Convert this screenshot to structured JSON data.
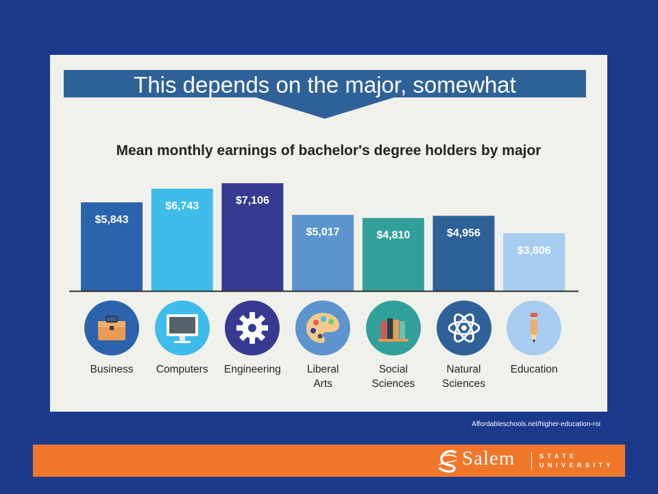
{
  "banner": {
    "title": "This depends on the major, somewhat"
  },
  "chart_data": {
    "type": "bar",
    "title": "Mean monthly earnings of bachelor's degree holders by major",
    "categories": [
      "Business",
      "Computers",
      "Engineering",
      "Liberal Arts",
      "Social Sciences",
      "Natural Sciences",
      "Education"
    ],
    "category_lines": [
      [
        "Business"
      ],
      [
        "Computers"
      ],
      [
        "Engineering"
      ],
      [
        "Liberal",
        "Arts"
      ],
      [
        "Social",
        "Sciences"
      ],
      [
        "Natural",
        "Sciences"
      ],
      [
        "Education"
      ]
    ],
    "values": [
      5843,
      6743,
      7106,
      5017,
      4810,
      4956,
      3806
    ],
    "value_labels": [
      "$5,843",
      "$6,743",
      "$7,106",
      "$5,017",
      "$4,810",
      "$4,956",
      "$3,806"
    ],
    "bar_colors": [
      "#2b63ad",
      "#3fbdea",
      "#363b91",
      "#5d94cd",
      "#32a09a",
      "#2f6199",
      "#a6cdef"
    ],
    "icon_names": [
      "briefcase-icon",
      "computer-monitor-icon",
      "gear-icon",
      "paint-palette-icon",
      "books-icon",
      "atom-icon",
      "pencil-icon"
    ],
    "icon_colors": [
      "#2b63ad",
      "#3fbdea",
      "#363b91",
      "#5d94cd",
      "#32a09a",
      "#2f6199",
      "#a6cdef"
    ],
    "ylim": [
      0,
      7106
    ],
    "grid": false,
    "legend": "none"
  },
  "source": "Affordableschools.net/higher-education-roi",
  "footer": {
    "logo_word": "Salem",
    "logo_state": "STATE",
    "logo_university": "UNIVERSITY",
    "background_color": "#f0772a"
  },
  "colors": {
    "background": "#1b3a8c",
    "panel": "#f1f1ec",
    "banner": "#2f6199"
  }
}
